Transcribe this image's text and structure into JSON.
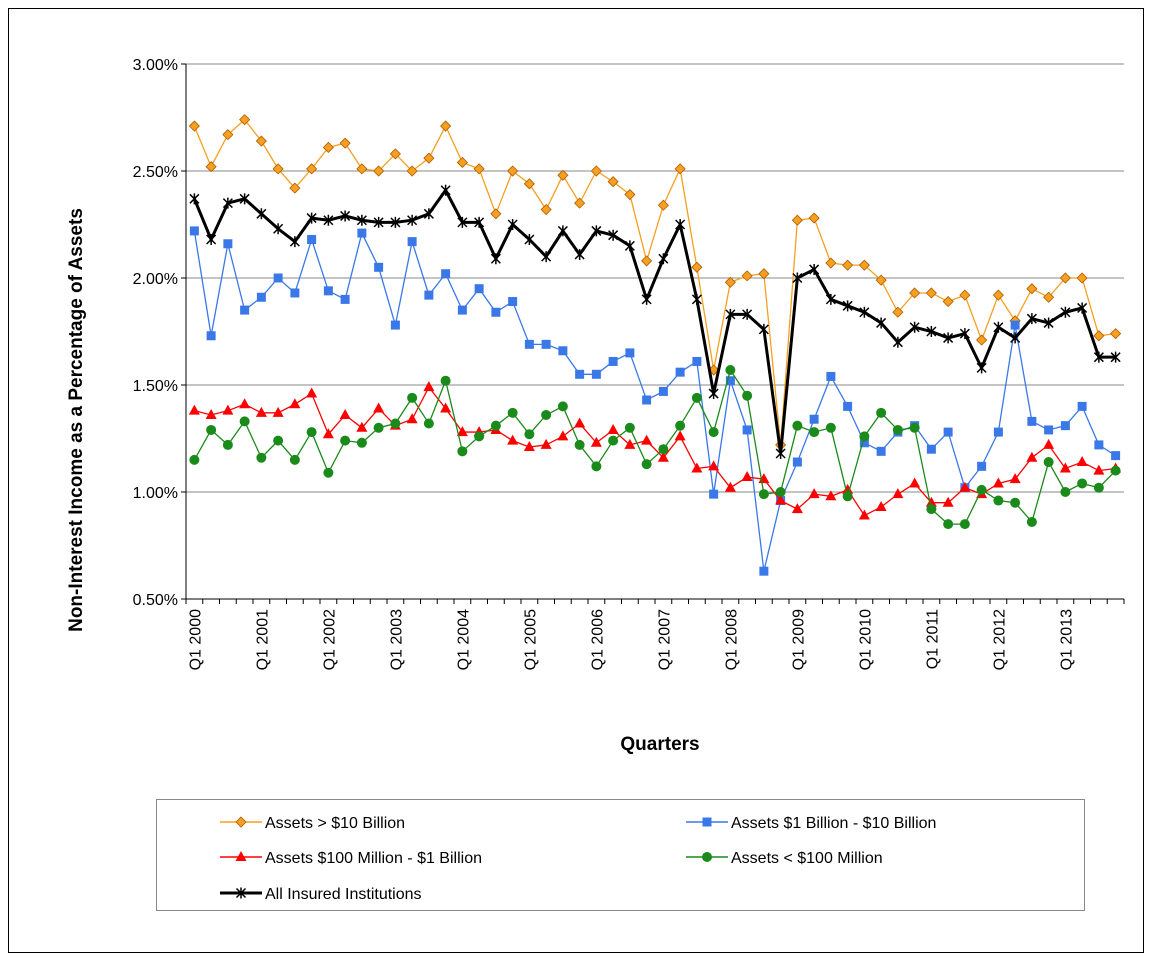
{
  "chart_data": {
    "type": "line",
    "x_label": "Quarters",
    "y_label": "Non-Interest Income as a Percentage of Assets",
    "categories": [
      "Q1 2000",
      null,
      null,
      null,
      "Q1 2001",
      null,
      null,
      null,
      "Q1 2002",
      null,
      null,
      null,
      "Q1 2003",
      null,
      null,
      null,
      "Q1 2004",
      null,
      null,
      null,
      "Q1 2005",
      null,
      null,
      null,
      "Q1 2006",
      null,
      null,
      null,
      "Q1 2007",
      null,
      null,
      null,
      "Q1 2008",
      null,
      null,
      null,
      "Q1 2009",
      null,
      null,
      null,
      "Q1 2010",
      null,
      null,
      null,
      "Q1 2011",
      null,
      null,
      null,
      "Q1 2012",
      null,
      null,
      null,
      "Q1 2013",
      null,
      null,
      null
    ],
    "ylim": [
      0.5,
      3.0
    ],
    "yticks": [
      {
        "value": 0.5,
        "label": "0.50%"
      },
      {
        "value": 1.0,
        "label": "1.00%"
      },
      {
        "value": 1.5,
        "label": "1.50%"
      },
      {
        "value": 2.0,
        "label": "2.00%"
      },
      {
        "value": 2.5,
        "label": "2.50%"
      },
      {
        "value": 3.0,
        "label": "3.00%"
      }
    ],
    "grid": true,
    "legend": "bottom",
    "series": [
      {
        "name": "Assets > $10 Billion",
        "color": "#f5a020",
        "marker": "diamond",
        "values": [
          2.71,
          2.52,
          2.67,
          2.74,
          2.64,
          2.51,
          2.42,
          2.51,
          2.61,
          2.63,
          2.51,
          2.5,
          2.58,
          2.5,
          2.56,
          2.71,
          2.54,
          2.51,
          2.3,
          2.5,
          2.44,
          2.32,
          2.48,
          2.35,
          2.5,
          2.45,
          2.39,
          2.08,
          2.34,
          2.51,
          2.05,
          1.57,
          1.98,
          2.01,
          2.02,
          1.22,
          2.27,
          2.28,
          2.07,
          2.06,
          2.06,
          1.99,
          1.84,
          1.93,
          1.93,
          1.89,
          1.92,
          1.71,
          1.92,
          1.8,
          1.95,
          1.91,
          2.0,
          2.0,
          1.73,
          1.74
        ]
      },
      {
        "name": "Assets $1 Billion - $10 Billion",
        "color": "#3a78e8",
        "marker": "square",
        "values": [
          2.22,
          1.73,
          2.16,
          1.85,
          1.91,
          2.0,
          1.93,
          2.18,
          1.94,
          1.9,
          2.21,
          2.05,
          1.78,
          2.17,
          1.92,
          2.02,
          1.85,
          1.95,
          1.84,
          1.89,
          1.69,
          1.69,
          1.66,
          1.55,
          1.55,
          1.61,
          1.65,
          1.43,
          1.47,
          1.56,
          1.61,
          0.99,
          1.52,
          1.29,
          0.63,
          0.96,
          1.14,
          1.34,
          1.54,
          1.4,
          1.23,
          1.19,
          1.28,
          1.31,
          1.2,
          1.28,
          1.02,
          1.12,
          1.28,
          1.78,
          1.33,
          1.29,
          1.31,
          1.4,
          1.22,
          1.17
        ]
      },
      {
        "name": "Assets $100 Million - $1 Billion",
        "color": "#ff0000",
        "marker": "triangle",
        "values": [
          1.38,
          1.36,
          1.38,
          1.41,
          1.37,
          1.37,
          1.41,
          1.46,
          1.27,
          1.36,
          1.3,
          1.39,
          1.31,
          1.34,
          1.49,
          1.39,
          1.28,
          1.28,
          1.29,
          1.24,
          1.21,
          1.22,
          1.26,
          1.32,
          1.23,
          1.29,
          1.22,
          1.24,
          1.16,
          1.26,
          1.11,
          1.12,
          1.02,
          1.07,
          1.06,
          0.96,
          0.92,
          0.99,
          0.98,
          1.01,
          0.89,
          0.93,
          0.99,
          1.04,
          0.95,
          0.95,
          1.02,
          0.99,
          1.04,
          1.06,
          1.16,
          1.22,
          1.11,
          1.14,
          1.1,
          1.11
        ]
      },
      {
        "name": "Assets < $100 Million",
        "color": "#1a8a1a",
        "marker": "circle",
        "values": [
          1.15,
          1.29,
          1.22,
          1.33,
          1.16,
          1.24,
          1.15,
          1.28,
          1.09,
          1.24,
          1.23,
          1.3,
          1.32,
          1.44,
          1.32,
          1.52,
          1.19,
          1.26,
          1.31,
          1.37,
          1.27,
          1.36,
          1.4,
          1.22,
          1.12,
          1.24,
          1.3,
          1.13,
          1.2,
          1.31,
          1.44,
          1.28,
          1.57,
          1.45,
          0.99,
          1.0,
          1.31,
          1.28,
          1.3,
          0.98,
          1.26,
          1.37,
          1.29,
          1.3,
          0.92,
          0.85,
          0.85,
          1.01,
          0.96,
          0.95,
          0.86,
          1.14,
          1.0,
          1.04,
          1.02,
          1.1
        ]
      },
      {
        "name": "All Insured Institutions",
        "color": "#000000",
        "marker": "star",
        "values": [
          2.37,
          2.18,
          2.35,
          2.37,
          2.3,
          2.23,
          2.17,
          2.28,
          2.27,
          2.29,
          2.27,
          2.26,
          2.26,
          2.27,
          2.3,
          2.41,
          2.26,
          2.26,
          2.09,
          2.25,
          2.18,
          2.1,
          2.22,
          2.11,
          2.22,
          2.2,
          2.15,
          1.9,
          2.09,
          2.25,
          1.9,
          1.46,
          1.83,
          1.83,
          1.76,
          1.18,
          2.0,
          2.04,
          1.9,
          1.87,
          1.84,
          1.79,
          1.7,
          1.77,
          1.75,
          1.72,
          1.74,
          1.58,
          1.77,
          1.72,
          1.81,
          1.79,
          1.84,
          1.86,
          1.63,
          1.63
        ]
      }
    ]
  }
}
